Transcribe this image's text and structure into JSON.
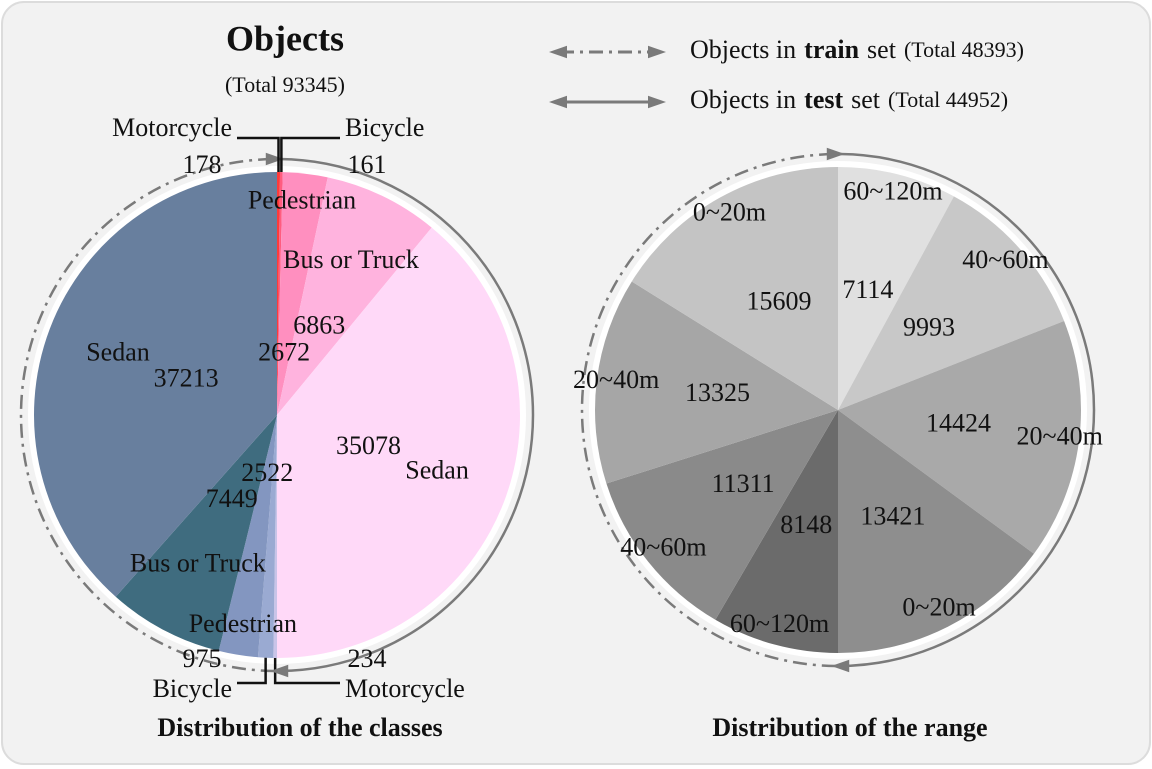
{
  "header": {
    "title": "Objects",
    "subtitle": "(Total 93345)"
  },
  "legend": [
    {
      "prefix": "Objects in",
      "name": "train",
      "suffix": "set",
      "total": "(Total 48393)",
      "line": "dash-dot"
    },
    {
      "prefix": "Objects in",
      "name": "test",
      "suffix": "set",
      "total": "(Total 44952)",
      "line": "solid"
    }
  ],
  "chart_data": [
    {
      "type": "pie",
      "title": "Distribution of the classes",
      "series": [
        {
          "categories": [
            "Motorcycle",
            "Bicycle",
            "Pedestrian",
            "Bus or Truck",
            "Sedan"
          ],
          "values": [
            234,
            975,
            2522,
            7449,
            37213
          ],
          "colors": [
            "#c9c4e8",
            "#9aaad2",
            "#8396c0",
            "#3f6c7f",
            "#687f9e"
          ]
        },
        {
          "categories": [
            "Motorcycle",
            "Bicycle",
            "Pedestrian",
            "Bus or Truck",
            "Sedan"
          ],
          "values": [
            178,
            161,
            2672,
            6863,
            35078
          ],
          "colors": [
            "#ff3b3b",
            "#ff5c80",
            "#ff8fbf",
            "#ffb3de",
            "#ffd9f8"
          ]
        }
      ]
    },
    {
      "type": "pie",
      "title": "Distribution of the range",
      "series": [
        {
          "categories": [
            "60~120m",
            "40~60m",
            "20~40m",
            "0~20m"
          ],
          "values": [
            8148,
            11311,
            13325,
            15609
          ],
          "colors": [
            "#6b6b6b",
            "#8a8a8a",
            "#a6a6a6",
            "#c4c4c4"
          ]
        },
        {
          "categories": [
            "60~120m",
            "40~60m",
            "20~40m",
            "0~20m"
          ],
          "values": [
            7114,
            9993,
            14424,
            13421
          ],
          "colors": [
            "#e0e0e0",
            "#c8c8c8",
            "#a9a9a9",
            "#8e8e8e"
          ]
        }
      ]
    }
  ]
}
